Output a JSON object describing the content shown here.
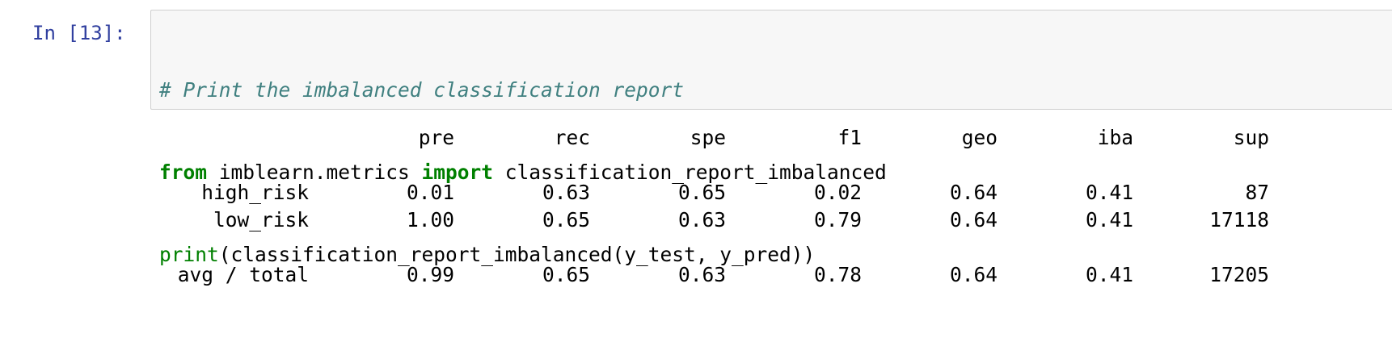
{
  "cell": {
    "prompt": "In [13]:",
    "code": {
      "comment": "# Print the imbalanced classification report",
      "line2_kw1": "from",
      "line2_mod": " imblearn.metrics ",
      "line2_kw2": "import",
      "line2_name": " classification_report_imbalanced",
      "line3_builtin": "print",
      "line3_rest": "(classification_report_imbalanced(y_test, y_pred))"
    }
  },
  "report": {
    "headers": [
      "pre",
      "rec",
      "spe",
      "f1",
      "geo",
      "iba",
      "sup"
    ],
    "rows": [
      {
        "label": "high_risk",
        "values": [
          "0.01",
          "0.63",
          "0.65",
          "0.02",
          "0.64",
          "0.41",
          "87"
        ]
      },
      {
        "label": "low_risk",
        "values": [
          "1.00",
          "0.65",
          "0.63",
          "0.79",
          "0.64",
          "0.41",
          "17118"
        ]
      }
    ],
    "total": {
      "label": "avg / total",
      "values": [
        "0.99",
        "0.65",
        "0.63",
        "0.78",
        "0.64",
        "0.41",
        "17205"
      ]
    }
  }
}
